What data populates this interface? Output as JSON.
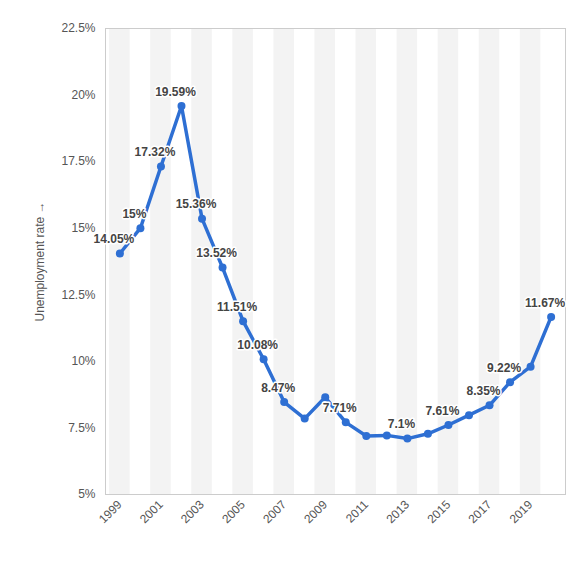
{
  "chart_data": {
    "type": "line",
    "y_label": "Unemployment rate",
    "x": [
      1999,
      2000,
      2001,
      2002,
      2003,
      2004,
      2005,
      2006,
      2007,
      2008,
      2009,
      2010,
      2011,
      2012,
      2013,
      2014,
      2015,
      2016,
      2017,
      2018,
      2019,
      2020
    ],
    "values": [
      14.05,
      15,
      17.32,
      19.59,
      15.36,
      13.52,
      11.51,
      10.08,
      8.47,
      7.85,
      8.65,
      7.71,
      7.2,
      7.22,
      7.1,
      7.28,
      7.61,
      7.98,
      8.35,
      9.22,
      9.8,
      11.67
    ],
    "value_labels": [
      "14.05%",
      "15%",
      "17.32%",
      "19.59%",
      "15.36%",
      "13.52%",
      "11.51%",
      "10.08%",
      "8.47%",
      null,
      null,
      "7.71%",
      null,
      null,
      "7.1%",
      null,
      "7.61%",
      null,
      "8.35%",
      "9.22%",
      null,
      "11.67%"
    ],
    "data_labels": true,
    "color": "#2e6fd3",
    "marker": "circle",
    "xlim": [
      1998.3,
      2020.7
    ],
    "xticks": [
      1999,
      2001,
      2003,
      2005,
      2007,
      2009,
      2011,
      2013,
      2015,
      2017,
      2019
    ],
    "ylim": [
      5,
      22.5
    ],
    "yticks": [
      {
        "value": 5,
        "label": "5%"
      },
      {
        "value": 7.5,
        "label": "7.5%"
      },
      {
        "value": 10,
        "label": "10%"
      },
      {
        "value": 12.5,
        "label": "12.5%"
      },
      {
        "value": 15,
        "label": "15%"
      },
      {
        "value": 17.5,
        "label": "17.5%"
      },
      {
        "value": 20,
        "label": "20%"
      },
      {
        "value": 22.5,
        "label": "22.5%"
      }
    ],
    "grid": false
  }
}
